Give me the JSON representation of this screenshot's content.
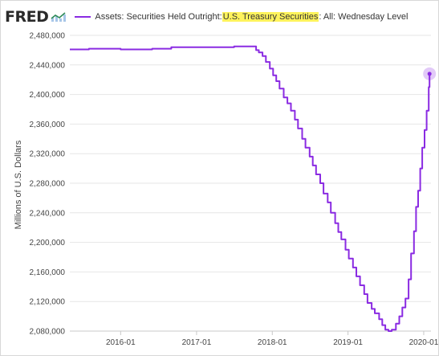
{
  "header": {
    "logo_text": "FRED",
    "logo_icon": "trend-line-icon",
    "legend_prefix": "Assets: Securities Held Outright: ",
    "legend_highlight": "U.S. Treasury Securities",
    "legend_suffix": ": All: Wednesday Level",
    "highlight_color": "#fff35c"
  },
  "chart_data": {
    "type": "line",
    "title": "",
    "xlabel": "",
    "ylabel": "Millions of U.S. Dollars",
    "xlim": [
      "2015-05-01",
      "2020-02-05"
    ],
    "ylim": [
      2080000,
      2480000
    ],
    "yticks": [
      2080000,
      2120000,
      2160000,
      2200000,
      2240000,
      2280000,
      2320000,
      2360000,
      2400000,
      2440000,
      2480000
    ],
    "ytick_labels": [
      "2,080,000",
      "2,120,000",
      "2,160,000",
      "2,200,000",
      "2,240,000",
      "2,280,000",
      "2,320,000",
      "2,360,000",
      "2,400,000",
      "2,440,000",
      "2,480,000"
    ],
    "xticks": [
      "2016-01-01",
      "2017-01-01",
      "2018-01-01",
      "2019-01-01",
      "2020-01-01"
    ],
    "xtick_labels": [
      "2016-01",
      "2017-01",
      "2018-01",
      "2019-01",
      "2020-01"
    ],
    "grid": "horizontal",
    "line_color": "#8a2be2",
    "series": [
      {
        "x": [
          "2015-05-01",
          "2015-08-01",
          "2016-01-01",
          "2016-06-01",
          "2016-09-01",
          "2017-01-01",
          "2017-04-01",
          "2017-07-01",
          "2017-10-01",
          "2017-10-15",
          "2017-10-28",
          "2017-11-15",
          "2017-12-01",
          "2017-12-20",
          "2018-01-05",
          "2018-01-20",
          "2018-02-05",
          "2018-02-25",
          "2018-03-15",
          "2018-04-01",
          "2018-04-20",
          "2018-05-05",
          "2018-05-25",
          "2018-06-10",
          "2018-06-30",
          "2018-07-15",
          "2018-07-31",
          "2018-08-20",
          "2018-09-05",
          "2018-09-25",
          "2018-10-10",
          "2018-10-31",
          "2018-11-15",
          "2018-11-30",
          "2018-12-20",
          "2019-01-05",
          "2019-01-25",
          "2019-02-10",
          "2019-02-28",
          "2019-03-20",
          "2019-04-05",
          "2019-04-25",
          "2019-05-10",
          "2019-05-31",
          "2019-06-15",
          "2019-06-30",
          "2019-07-15",
          "2019-07-31",
          "2019-08-20",
          "2019-09-05",
          "2019-09-20",
          "2019-10-05",
          "2019-10-20",
          "2019-11-01",
          "2019-11-15",
          "2019-11-25",
          "2019-12-05",
          "2019-12-15",
          "2019-12-25",
          "2020-01-05",
          "2020-01-15",
          "2020-01-25",
          "2020-01-29"
        ],
        "y": [
          2461000,
          2462000,
          2461000,
          2462000,
          2464000,
          2464000,
          2464000,
          2465000,
          2465000,
          2460000,
          2457000,
          2452000,
          2444000,
          2435000,
          2426000,
          2418000,
          2408000,
          2396000,
          2388000,
          2378000,
          2366000,
          2354000,
          2340000,
          2328000,
          2316000,
          2304000,
          2292000,
          2280000,
          2266000,
          2254000,
          2240000,
          2226000,
          2214000,
          2204000,
          2190000,
          2178000,
          2166000,
          2154000,
          2142000,
          2130000,
          2118000,
          2110000,
          2104000,
          2096000,
          2088000,
          2082000,
          2080000,
          2082000,
          2090000,
          2100000,
          2112000,
          2124000,
          2150000,
          2185000,
          2215000,
          2248000,
          2270000,
          2300000,
          2328000,
          2352000,
          2378000,
          2410000,
          2428000
        ]
      }
    ],
    "highlight_point": {
      "x": "2020-01-29",
      "y": 2428000
    }
  }
}
